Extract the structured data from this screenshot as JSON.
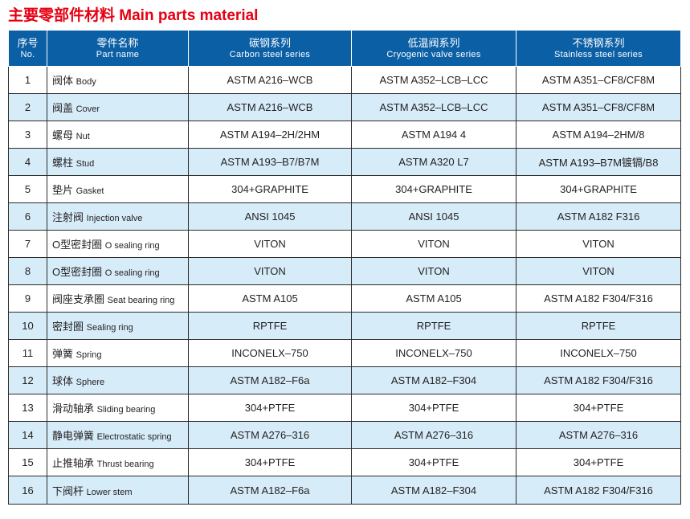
{
  "title": "主要零部件材料 Main parts material",
  "header": {
    "no_cn": "序号",
    "no_en": "No.",
    "part_cn": "零件名称",
    "part_en": "Part name",
    "carbon_cn": "碳钢系列",
    "carbon_en": "Carbon steel series",
    "cryo_cn": "低温阀系列",
    "cryo_en": "Cryogenic valve series",
    "stainless_cn": "不锈钢系列",
    "stainless_en": "Stainless steel series"
  },
  "rows": [
    {
      "no": "1",
      "name_cn": "阀体",
      "name_en": "Body",
      "carbon": "ASTM A216–WCB",
      "cryo": "ASTM A352–LCB–LCC",
      "stainless": "ASTM A351–CF8/CF8M"
    },
    {
      "no": "2",
      "name_cn": "阀盖",
      "name_en": "Cover",
      "carbon": "ASTM A216–WCB",
      "cryo": "ASTM A352–LCB–LCC",
      "stainless": "ASTM A351–CF8/CF8M"
    },
    {
      "no": "3",
      "name_cn": "螺母",
      "name_en": "Nut",
      "carbon": "ASTM A194–2H/2HM",
      "cryo": "ASTM A194 4",
      "stainless": "ASTM A194–2HM/8"
    },
    {
      "no": "4",
      "name_cn": "螺柱",
      "name_en": "Stud",
      "carbon": "ASTM A193–B7/B7M",
      "cryo": "ASTM A320 L7",
      "stainless": "ASTM A193–B7M镀镉/B8"
    },
    {
      "no": "5",
      "name_cn": "垫片",
      "name_en": "Gasket",
      "carbon": "304+GRAPHITE",
      "cryo": "304+GRAPHITE",
      "stainless": "304+GRAPHITE"
    },
    {
      "no": "6",
      "name_cn": "注射阀",
      "name_en": "Injection valve",
      "carbon": "ANSI 1045",
      "cryo": "ANSI 1045",
      "stainless": "ASTM A182 F316"
    },
    {
      "no": "7",
      "name_cn": "O型密封圈",
      "name_en": "O sealing ring",
      "carbon": "VITON",
      "cryo": "VITON",
      "stainless": "VITON"
    },
    {
      "no": "8",
      "name_cn": "O型密封圈",
      "name_en": "O sealing ring",
      "carbon": "VITON",
      "cryo": "VITON",
      "stainless": "VITON"
    },
    {
      "no": "9",
      "name_cn": "阀座支承圈",
      "name_en": "Seat bearing ring",
      "carbon": "ASTM A105",
      "cryo": "ASTM A105",
      "stainless": "ASTM A182 F304/F316"
    },
    {
      "no": "10",
      "name_cn": "密封圈",
      "name_en": "Sealing ring",
      "carbon": "RPTFE",
      "cryo": "RPTFE",
      "stainless": "RPTFE"
    },
    {
      "no": "11",
      "name_cn": "弹簧",
      "name_en": "Spring",
      "carbon": "INCONELX–750",
      "cryo": "INCONELX–750",
      "stainless": "INCONELX–750"
    },
    {
      "no": "12",
      "name_cn": "球体",
      "name_en": "Sphere",
      "carbon": "ASTM A182–F6a",
      "cryo": "ASTM A182–F304",
      "stainless": "ASTM A182 F304/F316"
    },
    {
      "no": "13",
      "name_cn": "滑动轴承",
      "name_en": "Sliding bearing",
      "carbon": "304+PTFE",
      "cryo": "304+PTFE",
      "stainless": "304+PTFE"
    },
    {
      "no": "14",
      "name_cn": "静电弹簧",
      "name_en": "Electrostatic spring",
      "carbon": "ASTM A276–316",
      "cryo": "ASTM A276–316",
      "stainless": "ASTM A276–316"
    },
    {
      "no": "15",
      "name_cn": "止推轴承",
      "name_en": "Thrust bearing",
      "carbon": "304+PTFE",
      "cryo": "304+PTFE",
      "stainless": "304+PTFE"
    },
    {
      "no": "16",
      "name_cn": "下阀杆",
      "name_en": "Lower stem",
      "carbon": "ASTM A182–F6a",
      "cryo": "ASTM A182–F304",
      "stainless": "ASTM A182 F304/F316"
    }
  ],
  "colors": {
    "title": "#e60012",
    "header_bg": "#0b5fa5",
    "header_text": "#ffffff",
    "alt_row_bg": "#d6ecf8",
    "border": "#2b2b2b"
  }
}
